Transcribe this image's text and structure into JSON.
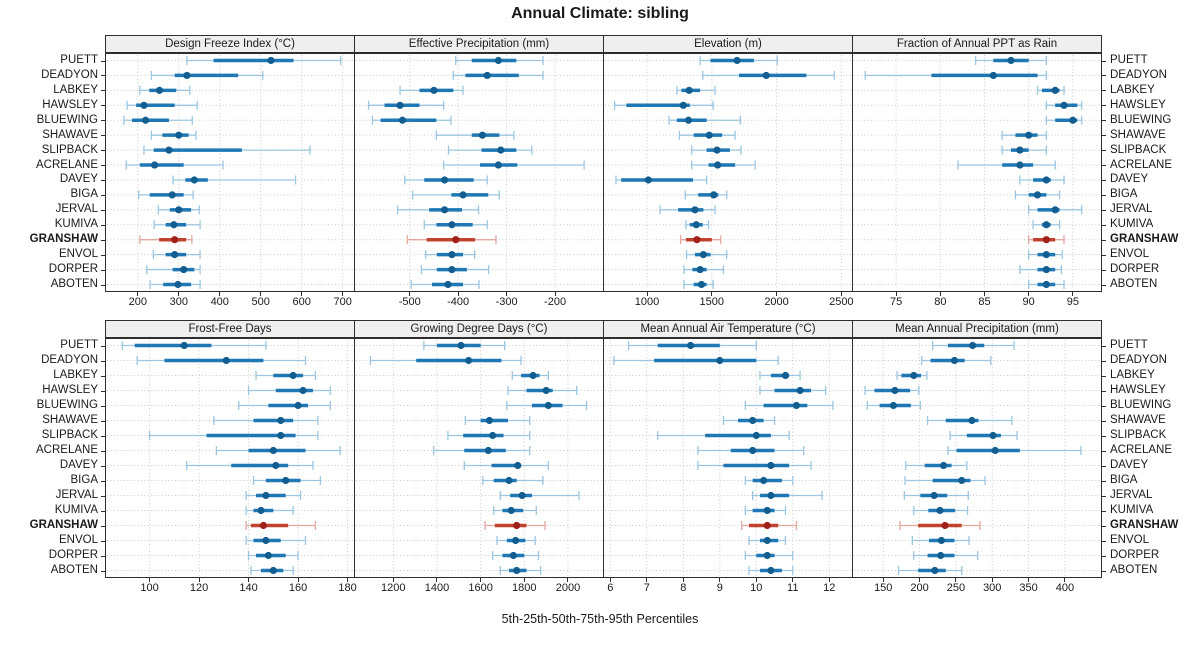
{
  "title": "Annual Climate: sibling",
  "caption": "5th-25th-50th-75th-95th Percentiles",
  "highlight_station": "GRANSHAW",
  "stations": [
    "PUETT",
    "DEADYON",
    "LABKEY",
    "HAWSLEY",
    "BLUEWING",
    "SHAWAVE",
    "SLIPBACK",
    "ACRELANE",
    "DAVEY",
    "BIGA",
    "JERVAL",
    "KUMIVA",
    "GRANSHAW",
    "ENVOL",
    "DORPER",
    "ABOTEN"
  ],
  "percentile_order": [
    5,
    25,
    50,
    75,
    95
  ],
  "colors": {
    "blue": "#1F77B4",
    "blue_light": "#9CC6E0",
    "blue_dot": "#135E90",
    "red": "#C0432F",
    "red_light": "#E2A79E",
    "red_dot": "#A2201A",
    "grid": "#c9c9c9",
    "border": "#2e2e2e",
    "header_bg": "#efefef",
    "tick_text": "#1a1a1a"
  },
  "chart_data": [
    {
      "type": "percentile-dotplot",
      "title": "Design Freeze Index (°C)",
      "xlim": [
        120,
        730
      ],
      "ticks": [
        200,
        300,
        400,
        500,
        600,
        700
      ],
      "values": [
        [
          320,
          385,
          525,
          580,
          695
        ],
        [
          233,
          290,
          320,
          445,
          505
        ],
        [
          205,
          228,
          253,
          294,
          327
        ],
        [
          174,
          196,
          215,
          290,
          345
        ],
        [
          166,
          186,
          219,
          276,
          333
        ],
        [
          233,
          260,
          300,
          324,
          342
        ],
        [
          215,
          239,
          276,
          454,
          620
        ],
        [
          172,
          205,
          241,
          312,
          408
        ],
        [
          286,
          316,
          338,
          371,
          585
        ],
        [
          202,
          229,
          284,
          312,
          335
        ],
        [
          250,
          278,
          300,
          330,
          350
        ],
        [
          240,
          268,
          288,
          318,
          352
        ],
        [
          205,
          252,
          290,
          318,
          332
        ],
        [
          238,
          268,
          290,
          318,
          352
        ],
        [
          222,
          285,
          312,
          338,
          352
        ],
        [
          230,
          262,
          298,
          330,
          352
        ]
      ]
    },
    {
      "type": "percentile-dotplot",
      "title": "Effective Precipitation (mm)",
      "xlim": [
        -615,
        -99
      ],
      "ticks": [
        -500,
        -400,
        -300,
        -200
      ],
      "values": [
        [
          -405,
          -372,
          -317,
          -280,
          -225
        ],
        [
          -410,
          -385,
          -340,
          -275,
          -225
        ],
        [
          -520,
          -480,
          -450,
          -410,
          -390
        ],
        [
          -585,
          -552,
          -520,
          -480,
          -430
        ],
        [
          -577,
          -560,
          -515,
          -445,
          -415
        ],
        [
          -445,
          -372,
          -350,
          -315,
          -285
        ],
        [
          -420,
          -352,
          -312,
          -280,
          -248
        ],
        [
          -430,
          -355,
          -317,
          -278,
          -140
        ],
        [
          -510,
          -470,
          -428,
          -368,
          -340
        ],
        [
          -494,
          -414,
          -390,
          -338,
          -315
        ],
        [
          -525,
          -460,
          -428,
          -392,
          -358
        ],
        [
          -470,
          -445,
          -413,
          -370,
          -340
        ],
        [
          -505,
          -465,
          -405,
          -365,
          -322
        ],
        [
          -467,
          -444,
          -413,
          -390,
          -366
        ],
        [
          -476,
          -444,
          -413,
          -382,
          -337
        ],
        [
          -497,
          -454,
          -421,
          -390,
          -357
        ]
      ]
    },
    {
      "type": "percentile-dotplot",
      "title": "Elevation (m)",
      "xlim": [
        660,
        2590
      ],
      "ticks": [
        1000,
        1500,
        2000,
        2500
      ],
      "values": [
        [
          1410,
          1490,
          1695,
          1825,
          2005
        ],
        [
          1430,
          1710,
          1920,
          2230,
          2445
        ],
        [
          1230,
          1265,
          1325,
          1410,
          1525
        ],
        [
          750,
          840,
          1280,
          1330,
          1510
        ],
        [
          1170,
          1230,
          1320,
          1460,
          1720
        ],
        [
          1250,
          1360,
          1480,
          1580,
          1680
        ],
        [
          1345,
          1460,
          1540,
          1640,
          1725
        ],
        [
          1345,
          1475,
          1545,
          1680,
          1835
        ],
        [
          760,
          800,
          1010,
          1355,
          1460
        ],
        [
          1295,
          1395,
          1515,
          1550,
          1615
        ],
        [
          1100,
          1240,
          1370,
          1435,
          1525
        ],
        [
          1300,
          1330,
          1380,
          1430,
          1475
        ],
        [
          1260,
          1300,
          1385,
          1500,
          1570
        ],
        [
          1305,
          1370,
          1435,
          1490,
          1615
        ],
        [
          1285,
          1350,
          1410,
          1460,
          1590
        ],
        [
          1285,
          1360,
          1420,
          1460,
          1510
        ]
      ]
    },
    {
      "type": "percentile-dotplot",
      "title": "Fraction of Annual PPT as Rain",
      "xlim": [
        70,
        98.3
      ],
      "ticks": [
        75,
        80,
        85,
        90,
        95
      ],
      "values": [
        [
          84,
          86,
          88,
          90,
          92
        ],
        [
          71.5,
          79,
          86,
          91,
          92
        ],
        [
          91,
          91.5,
          93,
          93.5,
          94
        ],
        [
          92,
          93,
          94,
          95.5,
          96
        ],
        [
          92,
          93,
          95,
          95.5,
          96
        ],
        [
          87,
          88.5,
          90,
          91,
          92
        ],
        [
          87,
          88,
          89,
          90,
          92
        ],
        [
          82,
          87,
          89,
          90.5,
          93
        ],
        [
          89,
          90.5,
          92,
          92.5,
          94
        ],
        [
          88.5,
          90,
          91,
          92,
          93.5
        ],
        [
          90,
          91,
          93,
          93.5,
          96
        ],
        [
          90.5,
          91.5,
          92,
          92.5,
          93.5
        ],
        [
          90,
          90.5,
          92,
          93,
          94
        ],
        [
          90,
          91,
          92,
          93,
          93.8
        ],
        [
          89,
          91,
          92,
          93,
          93.7
        ],
        [
          90,
          91,
          92,
          93,
          94
        ]
      ]
    },
    {
      "type": "percentile-dotplot",
      "title": "Frost-Free Days",
      "xlim": [
        82,
        183
      ],
      "ticks": [
        100,
        120,
        140,
        160,
        180
      ],
      "values": [
        [
          89,
          94,
          114,
          125,
          147
        ],
        [
          95,
          106,
          131,
          146,
          163
        ],
        [
          143,
          150,
          158,
          162,
          167
        ],
        [
          140,
          151,
          162,
          166,
          173
        ],
        [
          136,
          148,
          160,
          164,
          173
        ],
        [
          126,
          142,
          153,
          158,
          168
        ],
        [
          100,
          123,
          153,
          159,
          168
        ],
        [
          127,
          140,
          150,
          163,
          177
        ],
        [
          115,
          133,
          151,
          156,
          166
        ],
        [
          142,
          147,
          155,
          161,
          169
        ],
        [
          139,
          143,
          147,
          155,
          161
        ],
        [
          139,
          142,
          145,
          150,
          158
        ],
        [
          139,
          141,
          146,
          156,
          167
        ],
        [
          139,
          142,
          147,
          153,
          163
        ],
        [
          140,
          143,
          148,
          155,
          160
        ],
        [
          141,
          145,
          150,
          154,
          158
        ]
      ]
    },
    {
      "type": "percentile-dotplot",
      "title": "Growing Degree Days (°C)",
      "xlim": [
        1020,
        2165
      ],
      "ticks": [
        1200,
        1400,
        1600,
        1800,
        2000
      ],
      "values": [
        [
          1340,
          1400,
          1510,
          1600,
          1710
        ],
        [
          1095,
          1305,
          1545,
          1695,
          1785
        ],
        [
          1745,
          1785,
          1840,
          1870,
          1910
        ],
        [
          1725,
          1810,
          1900,
          1930,
          2040
        ],
        [
          1720,
          1835,
          1910,
          1975,
          2085
        ],
        [
          1530,
          1600,
          1640,
          1725,
          1825
        ],
        [
          1450,
          1520,
          1655,
          1705,
          1825
        ],
        [
          1385,
          1525,
          1635,
          1715,
          1825
        ],
        [
          1525,
          1650,
          1770,
          1785,
          1910
        ],
        [
          1610,
          1660,
          1730,
          1765,
          1885
        ],
        [
          1690,
          1735,
          1790,
          1835,
          2050
        ],
        [
          1660,
          1700,
          1740,
          1795,
          1855
        ],
        [
          1620,
          1665,
          1765,
          1810,
          1895
        ],
        [
          1675,
          1720,
          1760,
          1805,
          1850
        ],
        [
          1655,
          1700,
          1750,
          1800,
          1865
        ],
        [
          1690,
          1730,
          1765,
          1810,
          1875
        ]
      ]
    },
    {
      "type": "percentile-dotplot",
      "title": "Mean Annual Air Temperature (°C)",
      "xlim": [
        5.8,
        12.65
      ],
      "ticks": [
        6,
        7,
        8,
        9,
        10,
        11,
        12
      ],
      "values": [
        [
          6.5,
          7.3,
          8.2,
          9.0,
          10.0
        ],
        [
          6.1,
          7.2,
          9.0,
          10.0,
          10.6
        ],
        [
          10.1,
          10.4,
          10.8,
          10.9,
          11.2
        ],
        [
          10.1,
          10.5,
          11.2,
          11.5,
          11.9
        ],
        [
          9.7,
          10.2,
          11.1,
          11.4,
          12.1
        ],
        [
          9.1,
          9.5,
          9.9,
          10.2,
          10.5
        ],
        [
          7.3,
          8.6,
          10.0,
          10.4,
          10.9
        ],
        [
          8.4,
          9.3,
          9.9,
          10.5,
          11.3
        ],
        [
          8.4,
          9.1,
          10.4,
          10.9,
          11.5
        ],
        [
          9.7,
          9.9,
          10.2,
          10.7,
          11.0
        ],
        [
          9.9,
          10.1,
          10.4,
          10.9,
          11.8
        ],
        [
          9.7,
          9.9,
          10.3,
          10.5,
          10.8
        ],
        [
          9.6,
          9.8,
          10.3,
          10.6,
          11.1
        ],
        [
          9.8,
          10.1,
          10.3,
          10.6,
          10.8
        ],
        [
          9.7,
          10.0,
          10.3,
          10.5,
          11.0
        ],
        [
          9.8,
          10.1,
          10.4,
          10.7,
          11.0
        ]
      ]
    },
    {
      "type": "percentile-dotplot",
      "title": "Mean Annual Precipitation (mm)",
      "xlim": [
        107,
        451
      ],
      "ticks": [
        150,
        200,
        250,
        300,
        350,
        400
      ],
      "values": [
        [
          218,
          239,
          273,
          289,
          330
        ],
        [
          203,
          215,
          248,
          262,
          298
        ],
        [
          169,
          175,
          192,
          202,
          210
        ],
        [
          125,
          138,
          166,
          187,
          199
        ],
        [
          128,
          145,
          164,
          188,
          201
        ],
        [
          211,
          236,
          272,
          281,
          327
        ],
        [
          242,
          265,
          301,
          312,
          334
        ],
        [
          239,
          251,
          304,
          338,
          422
        ],
        [
          181,
          207,
          233,
          244,
          265
        ],
        [
          180,
          218,
          258,
          270,
          290
        ],
        [
          179,
          201,
          220,
          238,
          267
        ],
        [
          192,
          212,
          228,
          249,
          266
        ],
        [
          173,
          198,
          235,
          258,
          283
        ],
        [
          190,
          213,
          230,
          248,
          268
        ],
        [
          192,
          211,
          229,
          248,
          280
        ],
        [
          171,
          198,
          221,
          236,
          258
        ]
      ]
    }
  ]
}
